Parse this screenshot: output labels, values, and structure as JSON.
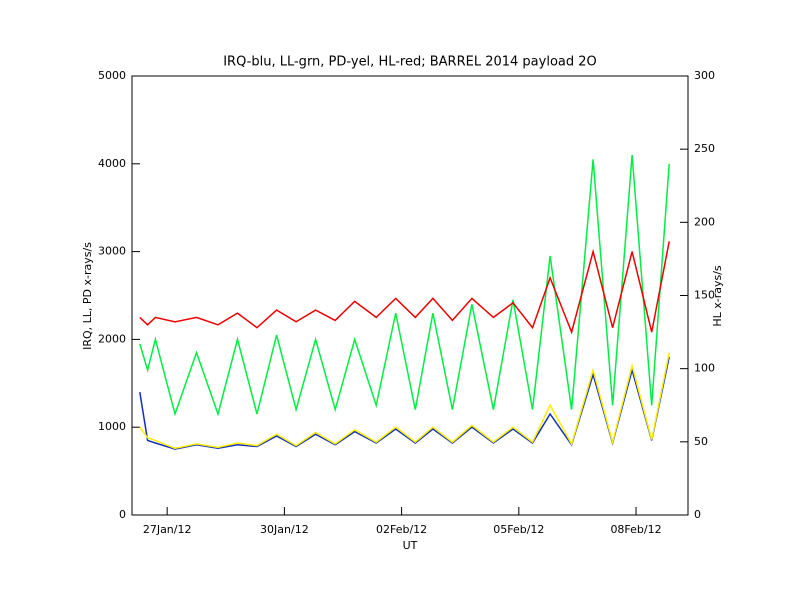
{
  "chart_data": {
    "type": "line",
    "title": "IRQ-blu, LL-grn, PD-yel, HL-red; BARREL 2014 payload 2O",
    "x_label": "UT",
    "y_label": "IRQ, LL, PD x-rays/s",
    "y2_label": "HL x-rays/s",
    "x": [
      -0.7,
      -0.5,
      -0.3,
      0.2,
      0.75,
      1.3,
      1.8,
      2.3,
      2.8,
      3.3,
      3.8,
      4.3,
      4.8,
      5.35,
      5.85,
      6.35,
      6.8,
      7.3,
      7.8,
      8.35,
      8.85,
      9.35,
      9.8,
      10.35,
      10.9,
      11.4,
      11.9,
      12.4,
      12.85
    ],
    "xlim": [
      -0.9,
      13.33
    ],
    "xticks": [
      {
        "value": 0,
        "label": "27Jan/12"
      },
      {
        "value": 3,
        "label": "30Jan/12"
      },
      {
        "value": 6,
        "label": "02Feb/12"
      },
      {
        "value": 9,
        "label": "05Feb/12"
      },
      {
        "value": 12,
        "label": "08Feb/12"
      }
    ],
    "ylim": [
      0,
      5000
    ],
    "yticks": [
      0,
      1000,
      2000,
      3000,
      4000,
      5000
    ],
    "y2lim": [
      0,
      300
    ],
    "y2ticks": [
      0,
      50,
      100,
      150,
      200,
      250,
      300
    ],
    "series": [
      {
        "name": "LL",
        "color": "#00ee44",
        "values": [
          1950,
          1650,
          2000,
          1150,
          1850,
          1150,
          2000,
          1150,
          2050,
          1200,
          2000,
          1200,
          2000,
          1250,
          2300,
          1200,
          2300,
          1200,
          2400,
          1200,
          2450,
          1200,
          2950,
          1200,
          4050,
          1250,
          4100,
          1250,
          4000
        ]
      },
      {
        "name": "IRQ",
        "color": "#1030c0",
        "values": [
          1400,
          850,
          820,
          750,
          800,
          760,
          800,
          780,
          900,
          780,
          920,
          800,
          950,
          820,
          980,
          820,
          980,
          820,
          1000,
          820,
          980,
          820,
          1150,
          800,
          1600,
          820,
          1650,
          850,
          1800
        ]
      },
      {
        "name": "PD",
        "color": "#ffee00",
        "values": [
          1000,
          880,
          850,
          760,
          810,
          770,
          820,
          790,
          920,
          790,
          940,
          810,
          970,
          830,
          1000,
          830,
          1000,
          830,
          1020,
          830,
          1000,
          830,
          1250,
          810,
          1650,
          830,
          1700,
          860,
          1850
        ]
      },
      {
        "name": "HL",
        "color": "#ee0000",
        "axis": "y2",
        "values": [
          135,
          130,
          135,
          132,
          135,
          130,
          138,
          128,
          140,
          132,
          140,
          133,
          146,
          135,
          148,
          135,
          148,
          133,
          148,
          135,
          145,
          128,
          162,
          125,
          180,
          128,
          180,
          125,
          187
        ]
      }
    ]
  }
}
